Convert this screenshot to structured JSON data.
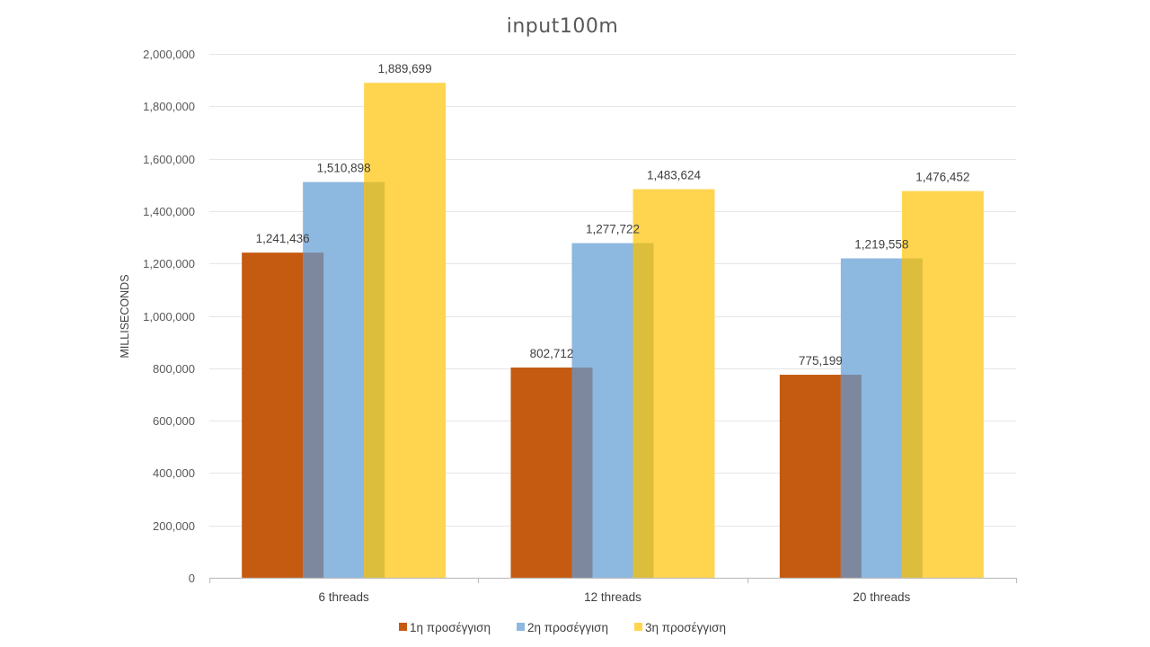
{
  "chart_data": {
    "type": "bar",
    "title": "input100m",
    "ylabel": "MILLISECONDS",
    "xlabel": "",
    "categories": [
      "6 threads",
      "12 threads",
      "20 threads"
    ],
    "series": [
      {
        "name": "1η προσέγγιση",
        "color": "#C55A11",
        "values": [
          1241436,
          802712,
          775199
        ]
      },
      {
        "name": "2η προσέγγιση",
        "color": "#8DB8E0",
        "values": [
          1510898,
          1277722,
          1219558
        ]
      },
      {
        "name": "3η προσέγγιση",
        "color": "#FFD54F",
        "values": [
          1889699,
          1483624,
          1476452
        ]
      }
    ],
    "data_labels": [
      [
        "1,241,436",
        "802,712",
        "775,199"
      ],
      [
        "1,510,898",
        "1,277,722",
        "1,219,558"
      ],
      [
        "1,889,699",
        "1,483,624",
        "1,476,452"
      ]
    ],
    "ylim": [
      0,
      2000000
    ],
    "yticks": [
      0,
      200000,
      400000,
      600000,
      800000,
      1000000,
      1200000,
      1400000,
      1600000,
      1800000,
      2000000
    ],
    "ytick_labels": [
      "0",
      "200,000",
      "400,000",
      "600,000",
      "800,000",
      "1,000,000",
      "1,200,000",
      "1,400,000",
      "1,600,000",
      "1,800,000",
      "2,000,000"
    ],
    "grid": true,
    "legend_position": "bottom",
    "overlap_color": "#7D889E"
  }
}
